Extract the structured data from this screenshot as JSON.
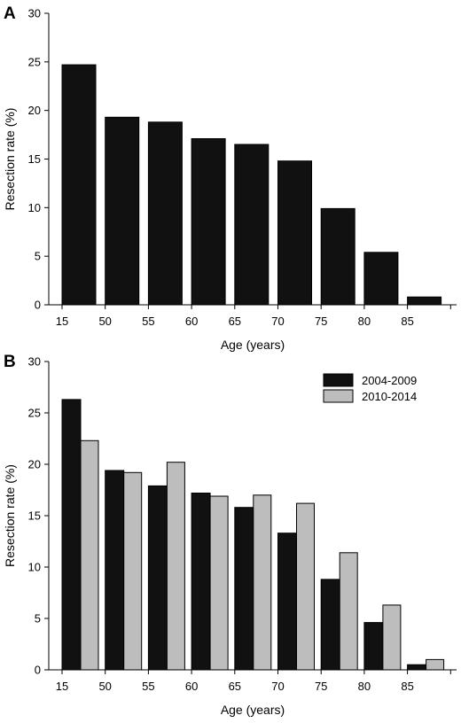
{
  "chart_data": [
    {
      "panel": "A",
      "type": "bar",
      "categories": [
        "15",
        "50",
        "55",
        "60",
        "65",
        "70",
        "75",
        "80",
        "85"
      ],
      "series": [
        {
          "values": [
            24.7,
            19.3,
            18.8,
            17.1,
            16.5,
            14.8,
            9.9,
            5.4,
            0.8
          ],
          "color": "#111111"
        }
      ],
      "xlabel": "Age (years)",
      "ylabel": "Resection rate (%)",
      "ylim": [
        0,
        30
      ],
      "yticks": [
        0,
        5,
        10,
        15,
        20,
        25,
        30
      ],
      "grid": false,
      "legend": null
    },
    {
      "panel": "B",
      "type": "bar",
      "categories": [
        "15",
        "50",
        "55",
        "60",
        "65",
        "70",
        "75",
        "80",
        "85"
      ],
      "series": [
        {
          "name": "2004-2009",
          "values": [
            26.3,
            19.4,
            17.9,
            17.2,
            15.8,
            13.3,
            8.8,
            4.6,
            0.5
          ],
          "color": "#111111"
        },
        {
          "name": "2010-2014",
          "values": [
            22.3,
            19.2,
            20.2,
            16.9,
            17.0,
            16.2,
            11.4,
            6.3,
            1.0
          ],
          "color": "#bdbdbd"
        }
      ],
      "xlabel": "Age (years)",
      "ylabel": "Resection rate (%)",
      "ylim": [
        0,
        30
      ],
      "yticks": [
        0,
        5,
        10,
        15,
        20,
        25,
        30
      ],
      "grid": false,
      "legend": "top-right"
    }
  ]
}
